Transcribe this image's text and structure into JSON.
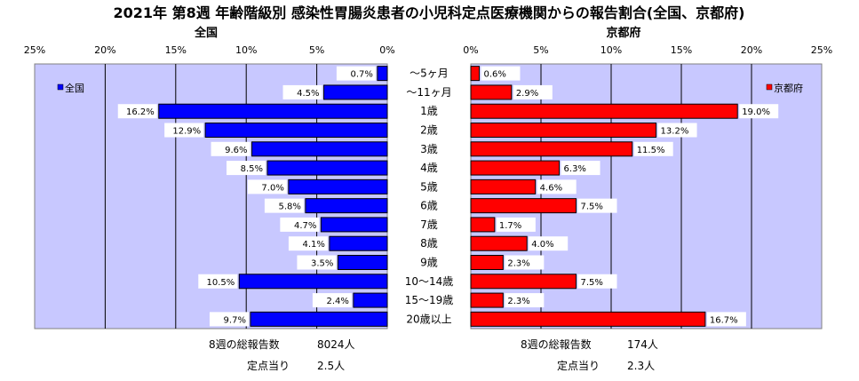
{
  "chart_data": {
    "type": "bar",
    "title": "2021年 第8週 年齢階級別 感染性胃腸炎患者の小児科定点医療機関からの報告割合(全国、京都府)",
    "categories": [
      "～5ヶ月",
      "～11ヶ月",
      "1歳",
      "2歳",
      "3歳",
      "4歳",
      "5歳",
      "6歳",
      "7歳",
      "8歳",
      "9歳",
      "10～14歳",
      "15～19歳",
      "20歳以上"
    ],
    "value_labels": {
      "national": [
        "0.7%",
        "4.5%",
        "16.2%",
        "12.9%",
        "9.6%",
        "8.5%",
        "7.0%",
        "5.8%",
        "4.7%",
        "4.1%",
        "3.5%",
        "10.5%",
        "2.4%",
        "9.7%"
      ],
      "kyoto": [
        "0.6%",
        "2.9%",
        "19.0%",
        "13.2%",
        "11.5%",
        "6.3%",
        "4.6%",
        "7.5%",
        "1.7%",
        "4.0%",
        "2.3%",
        "7.5%",
        "2.3%",
        "16.7%"
      ]
    },
    "series": [
      {
        "name": "全国",
        "panel_title": "全国",
        "color": "#0000ff",
        "values": [
          0.7,
          4.5,
          16.2,
          12.9,
          9.6,
          8.5,
          7.0,
          5.8,
          4.7,
          4.1,
          3.5,
          10.5,
          2.4,
          9.7
        ],
        "ticks": [
          "25%",
          "20%",
          "15%",
          "10%",
          "5%",
          "0%"
        ],
        "footer": {
          "total_label": "8週の総報告数",
          "total_value": "8024人",
          "per_label": "定点当り",
          "per_value": "2.5人"
        }
      },
      {
        "name": "京都府",
        "panel_title": "京都府",
        "color": "#ff0000",
        "values": [
          0.6,
          2.9,
          19.0,
          13.2,
          11.5,
          6.3,
          4.6,
          7.5,
          1.7,
          4.0,
          2.3,
          7.5,
          2.3,
          16.7
        ],
        "ticks": [
          "0%",
          "5%",
          "10%",
          "15%",
          "20%",
          "25%"
        ],
        "footer": {
          "total_label": "8週の総報告数",
          "total_value": "174人",
          "per_label": "定点当り",
          "per_value": "2.3人"
        }
      }
    ],
    "xlim": [
      0,
      25
    ],
    "unit": "%",
    "grid": true,
    "legend_placement": "top-inside",
    "plot_background": "#c8c8ff"
  }
}
